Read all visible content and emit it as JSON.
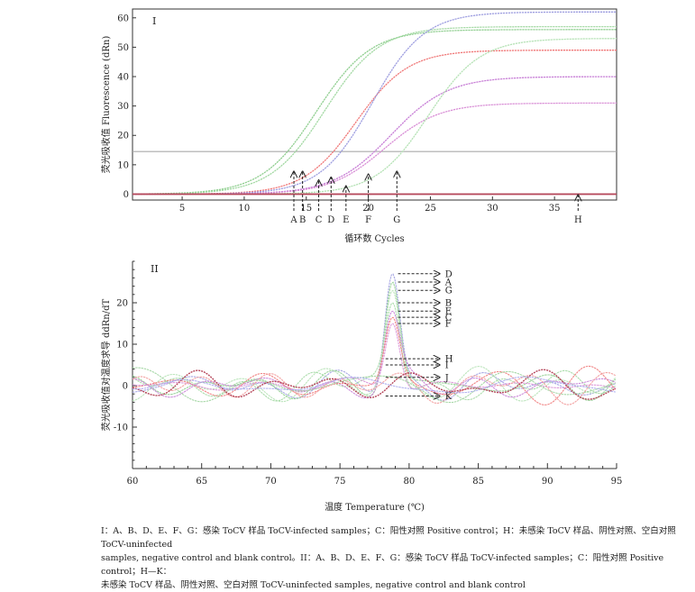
{
  "chart_data": [
    {
      "type": "line",
      "panel_label": "I",
      "xlabel": "循环数 Cycles",
      "ylabel": "荧光吸收值 Fluorescence (dRn)",
      "xlim": [
        1,
        40
      ],
      "ylim": [
        -2,
        63
      ],
      "xticks": [
        5,
        10,
        15,
        20,
        25,
        30,
        35
      ],
      "yticks": [
        0,
        10,
        20,
        30,
        40,
        50,
        60
      ],
      "threshold": 14.5,
      "grid": false,
      "legend": "none",
      "series": [
        {
          "label": "A",
          "color": "#8fce8f",
          "plateau": 56,
          "midpoint": 15.8,
          "slope": 2.2,
          "arrow_x": 14.0,
          "arrow_y": 8
        },
        {
          "label": "B",
          "color": "#a3d9a3",
          "plateau": 57,
          "midpoint": 16.5,
          "slope": 2.2,
          "arrow_x": 14.7,
          "arrow_y": 8
        },
        {
          "label": "C",
          "color": "#f07a7a",
          "plateau": 49,
          "midpoint": 19.0,
          "slope": 2.1,
          "arrow_x": 16.0,
          "arrow_y": 5
        },
        {
          "label": "D",
          "color": "#9f9fe0",
          "plateau": 62,
          "midpoint": 20.3,
          "slope": 2.1,
          "arrow_x": 17.0,
          "arrow_y": 6
        },
        {
          "label": "E",
          "color": "#c77ed6",
          "plateau": 40,
          "midpoint": 21.8,
          "slope": 2.3,
          "arrow_x": 18.2,
          "arrow_y": 3
        },
        {
          "label": "F",
          "color": "#d98fd6",
          "plateau": 31,
          "midpoint": 21.3,
          "slope": 2.2,
          "arrow_x": 20.0,
          "arrow_y": 7
        },
        {
          "label": "G",
          "color": "#b5e2b5",
          "plateau": 53,
          "midpoint": 24.8,
          "slope": 2.1,
          "arrow_x": 22.3,
          "arrow_y": 8
        },
        {
          "label": "H",
          "color": "#b5465a",
          "plateau": 0,
          "midpoint": 0,
          "slope": 1,
          "arrow_x": 36.9,
          "arrow_y": 0
        }
      ]
    },
    {
      "type": "line",
      "panel_label": "II",
      "xlabel": "温度 Temperature (℃)",
      "ylabel": "荧光吸收值对温度求导 ddRn/dT",
      "xlim": [
        60,
        95
      ],
      "ylim": [
        -20,
        30
      ],
      "xticks": [
        60,
        65,
        70,
        75,
        80,
        85,
        90,
        95
      ],
      "yticks": [
        -10,
        0,
        10,
        20
      ],
      "grid": false,
      "legend": "none",
      "peak_temperature": 78.8,
      "series": [
        {
          "label": "D",
          "color": "#9f9fe0",
          "peak_height": 27,
          "arrow_y": 27
        },
        {
          "label": "A",
          "color": "#8fce8f",
          "peak_height": 25,
          "arrow_y": 25
        },
        {
          "label": "G",
          "color": "#b5e2b5",
          "peak_height": 23,
          "arrow_y": 23
        },
        {
          "label": "B",
          "color": "#a3d9a3",
          "peak_height": 20,
          "arrow_y": 20
        },
        {
          "label": "E",
          "color": "#c77ed6",
          "peak_height": 18,
          "arrow_y": 18
        },
        {
          "label": "C",
          "color": "#f07a7a",
          "peak_height": 16.5,
          "arrow_y": 16.5
        },
        {
          "label": "F",
          "color": "#d98fd6",
          "peak_height": 15,
          "arrow_y": 15
        },
        {
          "label": "H",
          "color": "#f29a9a",
          "peak_height": 0,
          "arrow_y": 6.5
        },
        {
          "label": "I",
          "color": "#9fd49f",
          "peak_height": 0,
          "arrow_y": 5
        },
        {
          "label": "J",
          "color": "#b5465a",
          "peak_height": 0,
          "arrow_y": 2
        },
        {
          "label": "K",
          "color": "#aaaaee",
          "peak_height": 0,
          "arrow_y": -2.5
        }
      ]
    }
  ],
  "caption": {
    "line1": "I：A、B、D、E、F、G：感染 ToCV 样品 ToCV-infected samples；C：阳性对照 Positive control；H：未感染 ToCV 样品、阴性对照、空白对照 ToCV-uninfected",
    "line2": "samples, negative control and blank control。II：A、B、D、E、F、G：感染 ToCV 样品 ToCV-infected samples；C：阳性对照 Positive control；H—K：",
    "line3": "未感染 ToCV 样品、阴性对照、空白对照 ToCV-uninfected samples, negative control and blank control"
  }
}
